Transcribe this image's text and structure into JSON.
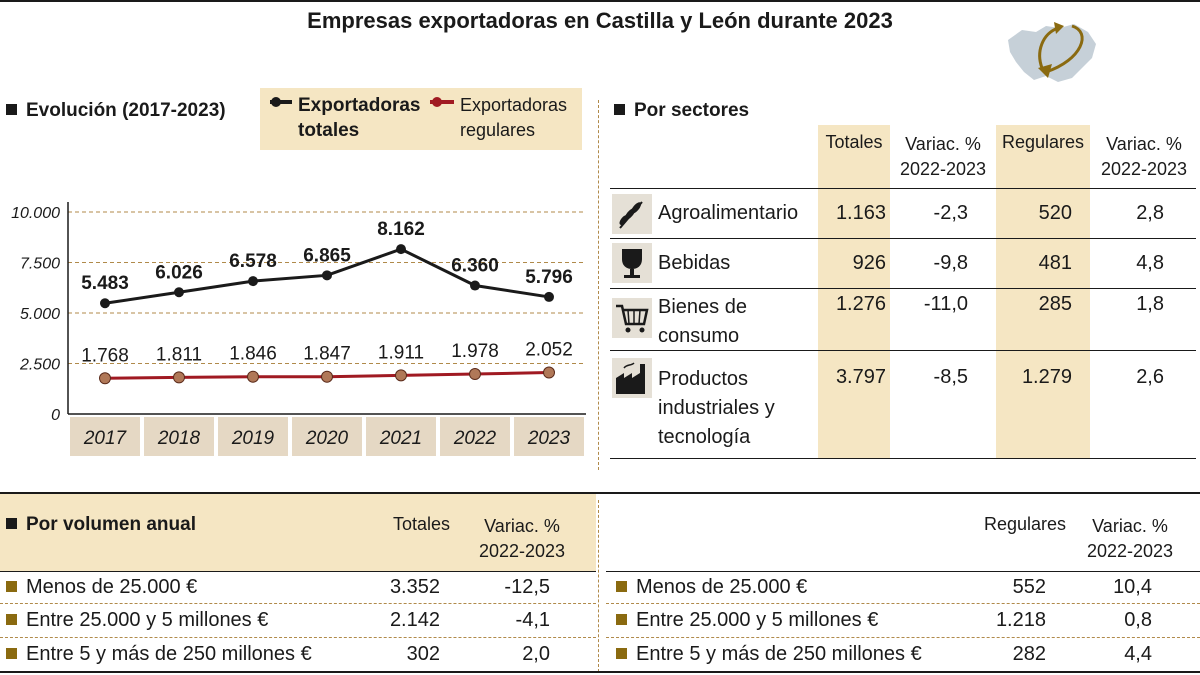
{
  "title": "Empresas exportadoras en Castilla y León durante 2023",
  "colors": {
    "totales": "#1a1a1a",
    "regulares": "#a01a22",
    "beige": "#f5e6c3",
    "bullet": "#8a6a10"
  },
  "evolucion": {
    "title": "Evolución (2017-2023)",
    "legend": {
      "totales": "Exportadoras totales",
      "regulares": "Exportadoras regulares"
    }
  },
  "chart_data": {
    "type": "line",
    "title": "Evolución (2017-2023)",
    "categories": [
      "2017",
      "2018",
      "2019",
      "2020",
      "2021",
      "2022",
      "2023"
    ],
    "series": [
      {
        "name": "Exportadoras totales",
        "values": [
          5483,
          6026,
          6578,
          6865,
          8162,
          6360,
          5796
        ],
        "labels": [
          "5.483",
          "6.026",
          "6.578",
          "6.865",
          "8.162",
          "6.360",
          "5.796"
        ]
      },
      {
        "name": "Exportadoras regulares",
        "values": [
          1768,
          1811,
          1846,
          1847,
          1911,
          1978,
          2052
        ],
        "labels": [
          "1.768",
          "1.811",
          "1.846",
          "1.847",
          "1.911",
          "1.978",
          "2.052"
        ]
      }
    ],
    "yticks": [
      "0",
      "2.500",
      "5.000",
      "7.500",
      "10.000"
    ],
    "ylim": [
      0,
      10000
    ],
    "grid": true,
    "legend": "top"
  },
  "sectores": {
    "title": "Por sectores",
    "headers": {
      "totales": "Totales",
      "variac1": "Variac. % 2022-2023",
      "regulares": "Regulares",
      "variac2": "Variac. % 2022-2023"
    },
    "rows": [
      {
        "icon": "wheat-icon",
        "label": "Agroalimentario",
        "totales": "1.163",
        "variac1": "-2,3",
        "regulares": "520",
        "variac2": "2,8"
      },
      {
        "icon": "cup-icon",
        "label": "Bebidas",
        "totales": "926",
        "variac1": "-9,8",
        "regulares": "481",
        "variac2": "4,8"
      },
      {
        "icon": "cart-icon",
        "label": "Bienes de consumo",
        "totales": "1.276",
        "variac1": "-11,0",
        "regulares": "285",
        "variac2": "1,8"
      },
      {
        "icon": "factory-icon",
        "label": "Productos industriales y tecnología",
        "totales": "3.797",
        "variac1": "-8,5",
        "regulares": "1.279",
        "variac2": "2,6"
      }
    ]
  },
  "volumen": {
    "title": "Por volumen anual",
    "left_headers": {
      "totales": "Totales",
      "variac": "Variac. % 2022-2023"
    },
    "right_headers": {
      "regulares": "Regulares",
      "variac": "Variac. % 2022-2023"
    },
    "left_rows": [
      {
        "label": "Menos de 25.000 €",
        "value": "3.352",
        "variac": "-12,5"
      },
      {
        "label": "Entre 25.000 y 5 millones €",
        "value": "2.142",
        "variac": "-4,1"
      },
      {
        "label": "Entre 5 y más de 250 millones €",
        "value": "302",
        "variac": "2,0"
      }
    ],
    "right_rows": [
      {
        "label": "Menos de 25.000 €",
        "value": "552",
        "variac": "10,4"
      },
      {
        "label": "Entre 25.000 y 5 millones €",
        "value": "1.218",
        "variac": "0,8"
      },
      {
        "label": "Entre 5 y más de 250 millones €",
        "value": "282",
        "variac": "4,4"
      }
    ]
  },
  "map_icon": "castilla-leon-map-icon"
}
